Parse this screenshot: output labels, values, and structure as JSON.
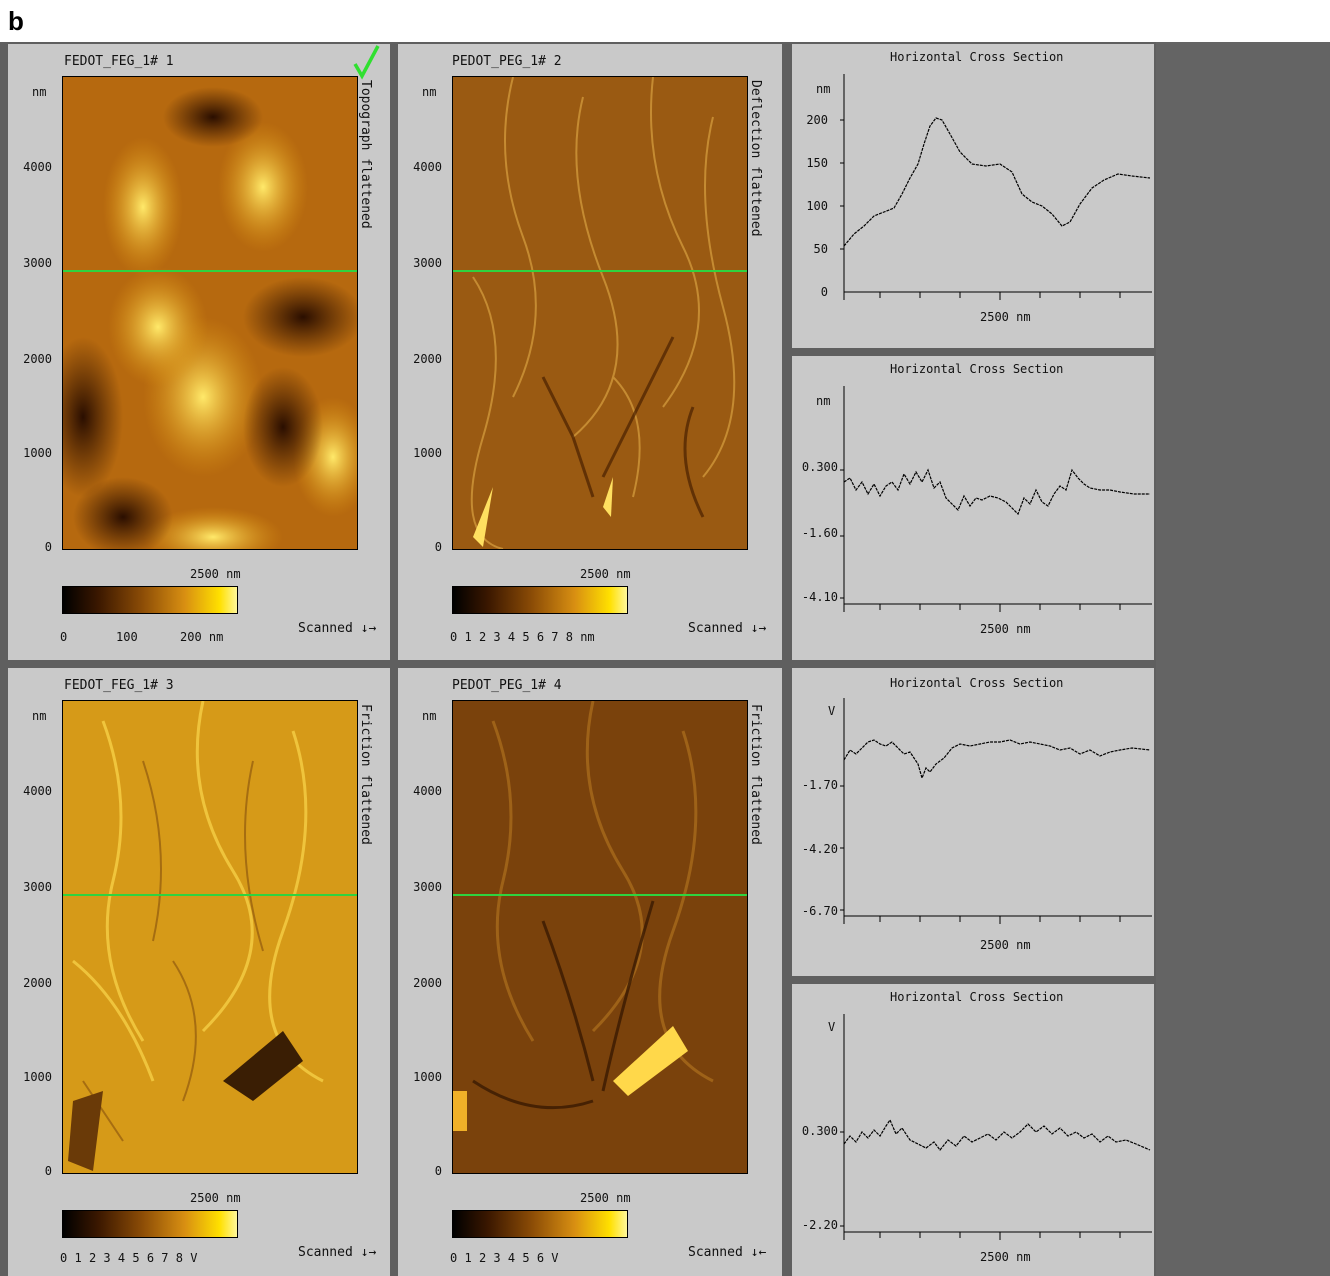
{
  "figure_label": "b",
  "colors": {
    "background": "#5f5f5f",
    "panel": "#c9c9c9",
    "scanline": "#2fd33f",
    "check": "#30e030"
  },
  "images": [
    {
      "title": "FEDOT_FEG_1# 1",
      "channel": "Topograph flattened",
      "y_unit": "nm",
      "y_ticks": [
        "4000",
        "3000",
        "2000",
        "1000",
        "0"
      ],
      "x_label": "2500 nm",
      "cbar_ticks": [
        "0",
        "100",
        "200 nm"
      ],
      "scanned": "Scanned ↓→",
      "checkmark": true
    },
    {
      "title": "PEDOT_PEG_1# 2",
      "channel": "Deflection flattened",
      "y_unit": "nm",
      "y_ticks": [
        "4000",
        "3000",
        "2000",
        "1000",
        "0"
      ],
      "x_label": "2500 nm",
      "cbar_ticks": [
        "0",
        "1",
        "2",
        "3",
        "4",
        "5",
        "6",
        "7",
        "8 nm"
      ],
      "scanned": "Scanned ↓→"
    },
    {
      "title": "FEDOT_FEG_1# 3",
      "channel": "Friction flattened",
      "y_unit": "nm",
      "y_ticks": [
        "4000",
        "3000",
        "2000",
        "1000",
        "0"
      ],
      "x_label": "2500 nm",
      "cbar_ticks": [
        "0",
        "1",
        "2",
        "3",
        "4",
        "5",
        "6",
        "7",
        "8 V"
      ],
      "scanned": "Scanned ↓→"
    },
    {
      "title": "PEDOT_PEG_1# 4",
      "channel": "Friction flattened",
      "y_unit": "nm",
      "y_ticks": [
        "4000",
        "3000",
        "2000",
        "1000",
        "0"
      ],
      "x_label": "2500 nm",
      "cbar_ticks": [
        "0",
        "1",
        "2",
        "3",
        "4",
        "5",
        "6 V"
      ],
      "scanned": "Scanned ↓←"
    }
  ],
  "cross_sections": [
    {
      "title": "Horizontal Cross Section",
      "y_unit": "nm",
      "y_ticks": [
        "200",
        "150",
        "100",
        "50",
        "0"
      ],
      "x_label": "2500 nm"
    },
    {
      "title": "Horizontal Cross Section",
      "y_unit": "nm",
      "y_ticks": [
        "0.300",
        "-1.60",
        "-4.10"
      ],
      "x_label": "2500 nm"
    },
    {
      "title": "Horizontal Cross Section",
      "y_unit": "V",
      "y_ticks": [
        "-1.70",
        "-4.20",
        "-6.70"
      ],
      "x_label": "2500 nm"
    },
    {
      "title": "Horizontal Cross Section",
      "y_unit": "V",
      "y_ticks": [
        "0.300",
        "-2.20"
      ],
      "x_label": "2500 nm"
    }
  ]
}
